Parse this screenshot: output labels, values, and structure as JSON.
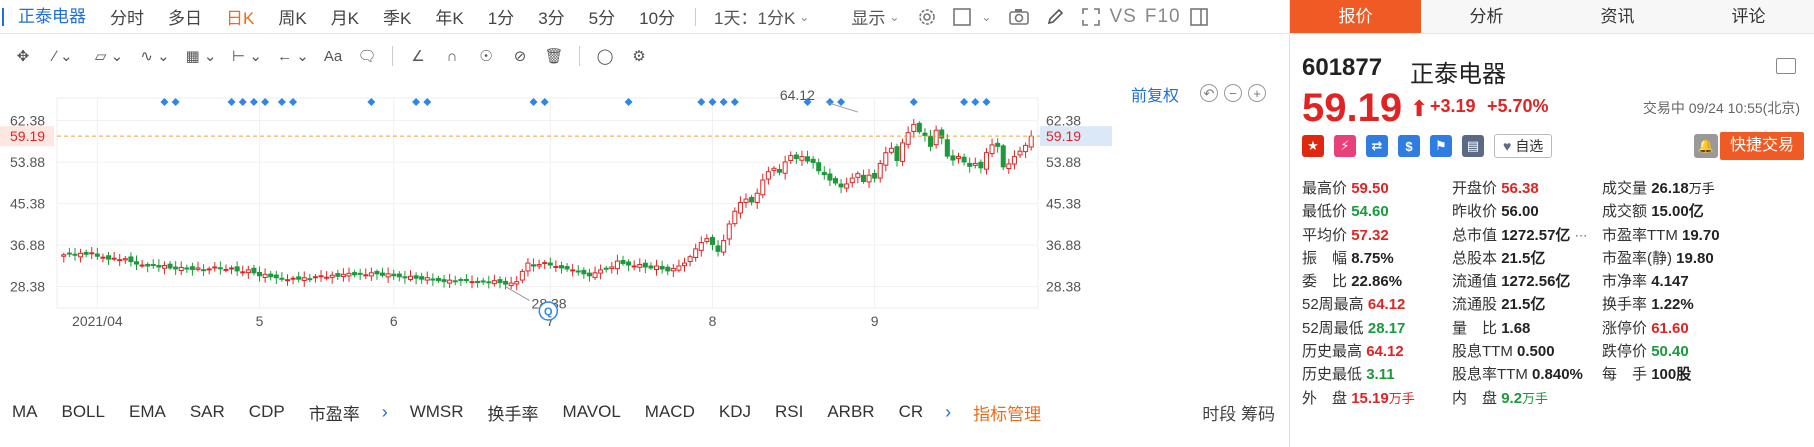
{
  "periods": {
    "stock_name": "正泰电器",
    "items": [
      "分时",
      "多日",
      "日K",
      "周K",
      "月K",
      "季K",
      "年K",
      "1分",
      "3分",
      "5分",
      "10分"
    ],
    "active": "日K",
    "range_label": "1天：1分K",
    "display_label": "显示",
    "vs_label": "VS",
    "f10_label": "F10"
  },
  "toolbar": {
    "text_tool": "Aa"
  },
  "chart": {
    "restore_label": "前复权",
    "high_label": "64.12",
    "low_label": "28.38",
    "event_badge": "Q"
  },
  "chart_data": {
    "type": "candlestick",
    "current_price": 59.19,
    "y_ticks": [
      "62.38",
      "53.88",
      "45.38",
      "36.88",
      "28.38"
    ],
    "y_tick_values": [
      62.38,
      53.88,
      45.38,
      36.88,
      28.38
    ],
    "ylim": [
      24.0,
      67.0
    ],
    "x_labels": [
      "2021/04",
      "5",
      "6",
      "7",
      "8",
      "9"
    ],
    "x_label_index": [
      6,
      35,
      59,
      87,
      116,
      145
    ],
    "max_point": {
      "index": 142,
      "value": 64.12
    },
    "min_point": {
      "index": 79,
      "value": 28.38
    },
    "marker_index": [
      18,
      20,
      30,
      32,
      34,
      36,
      39,
      41,
      55,
      63,
      65,
      84,
      86,
      101,
      114,
      116,
      118,
      120,
      133,
      137,
      139,
      152,
      161,
      163,
      165
    ],
    "closes": [
      34.9,
      35.1,
      34.8,
      35.2,
      35.0,
      35.3,
      34.6,
      34.4,
      34.0,
      34.2,
      33.9,
      34.1,
      33.5,
      33.0,
      32.8,
      32.6,
      32.9,
      32.4,
      32.7,
      32.2,
      32.0,
      32.3,
      32.1,
      31.9,
      32.2,
      31.8,
      32.0,
      32.4,
      32.1,
      31.9,
      32.2,
      31.6,
      31.4,
      31.8,
      31.2,
      30.6,
      30.9,
      30.4,
      30.2,
      30.0,
      29.8,
      30.1,
      29.9,
      30.2,
      30.0,
      30.4,
      30.6,
      30.3,
      30.7,
      30.5,
      30.9,
      31.1,
      30.8,
      31.0,
      30.8,
      31.2,
      31.0,
      30.7,
      31.0,
      30.6,
      30.4,
      30.2,
      30.5,
      30.1,
      29.9,
      30.2,
      29.8,
      29.6,
      29.4,
      29.7,
      29.5,
      29.8,
      29.6,
      29.4,
      29.2,
      29.5,
      29.3,
      29.6,
      29.2,
      28.9,
      29.1,
      29.4,
      31.5,
      33.2,
      32.6,
      32.9,
      33.3,
      32.8,
      32.5,
      32.2,
      32.0,
      31.8,
      31.4,
      31.0,
      30.6,
      31.2,
      31.8,
      32.1,
      32.4,
      33.6,
      33.1,
      32.8,
      32.6,
      32.9,
      32.4,
      32.2,
      32.6,
      32.0,
      31.6,
      32.1,
      32.6,
      33.2,
      34.5,
      36.1,
      37.4,
      38.2,
      37.0,
      35.6,
      37.8,
      41.2,
      43.8,
      45.6,
      46.3,
      45.7,
      47.5,
      50.2,
      51.9,
      52.6,
      51.8,
      53.9,
      55.2,
      54.6,
      55.0,
      54.1,
      53.8,
      52.1,
      51.3,
      50.2,
      49.6,
      48.8,
      49.4,
      50.6,
      51.5,
      49.9,
      51.2,
      50.6,
      53.6,
      55.8,
      56.7,
      54.2,
      57.8,
      59.9,
      61.6,
      60.1,
      59.3,
      57.1,
      60.4,
      58.8,
      55.1,
      54.3,
      55.0,
      53.9,
      53.0,
      53.6,
      52.7,
      55.8,
      57.4,
      57.1,
      52.9,
      53.5,
      55.0,
      56.1,
      57.3,
      59.19
    ]
  },
  "indicators": {
    "items": [
      "MA",
      "BOLL",
      "EMA",
      "SAR",
      "CDP",
      "市盈率",
      "WMSR",
      "换手率",
      "MAVOL",
      "MACD",
      "KDJ",
      "RSI",
      "ARBR",
      "CR"
    ],
    "manage_label": "指标管理",
    "right_label": "时段 筹码"
  },
  "right_tabs": [
    "报价",
    "分析",
    "资讯",
    "评论"
  ],
  "stock": {
    "code": "601877",
    "name": "正泰电器",
    "price": "59.19",
    "change": "+3.19",
    "change_pct": "+5.70%",
    "status": "交易中 09/24 10:55(北京)",
    "fav_label": "自选",
    "quick_trade": "快捷交易",
    "up_color": "#e02424",
    "down_color": "#1a9a3a",
    "accent": "#f05a24"
  },
  "stats": {
    "high": {
      "label": "最高价",
      "value": "59.50"
    },
    "open": {
      "label": "开盘价",
      "value": "56.38"
    },
    "volume": {
      "label": "成交量",
      "value": "26.18",
      "unit": "万手"
    },
    "low": {
      "label": "最低价",
      "value": "54.60"
    },
    "prev_close": {
      "label": "昨收价",
      "value": "56.00"
    },
    "turnover": {
      "label": "成交额",
      "value": "15.00亿"
    },
    "avg": {
      "label": "平均价",
      "value": "57.32"
    },
    "mkt_cap": {
      "label": "总市值",
      "value": "1272.57亿"
    },
    "pe_ttm": {
      "label": "市盈率TTM",
      "value": "19.70"
    },
    "amplitude": {
      "label": "振　幅",
      "value": "8.75%"
    },
    "total_shares": {
      "label": "总股本",
      "value": "21.5亿"
    },
    "pe_static": {
      "label": "市盈率(静)",
      "value": "19.80"
    },
    "commission": {
      "label": "委　比",
      "value": "22.86%"
    },
    "float_cap": {
      "label": "流通值",
      "value": "1272.56亿"
    },
    "pb": {
      "label": "市净率",
      "value": "4.147"
    },
    "wk52_high": {
      "label": "52周最高",
      "value": "64.12"
    },
    "float_shares": {
      "label": "流通股",
      "value": "21.5亿"
    },
    "turnover_rate": {
      "label": "换手率",
      "value": "1.22%"
    },
    "wk52_low": {
      "label": "52周最低",
      "value": "28.17"
    },
    "vol_ratio": {
      "label": "量　比",
      "value": "1.68"
    },
    "limit_up": {
      "label": "涨停价",
      "value": "61.60"
    },
    "hist_high": {
      "label": "历史最高",
      "value": "64.12"
    },
    "div_ttm": {
      "label": "股息TTM",
      "value": "0.500"
    },
    "limit_down": {
      "label": "跌停价",
      "value": "50.40"
    },
    "hist_low": {
      "label": "历史最低",
      "value": "3.11"
    },
    "div_rate": {
      "label": "股息率TTM",
      "value": "0.840%"
    },
    "lot": {
      "label": "每　手",
      "value": "100股"
    },
    "outer": {
      "label": "外　盘",
      "value": "15.19",
      "unit": "万手"
    },
    "inner": {
      "label": "内　盘",
      "value": "9.2",
      "unit": "万手"
    }
  }
}
